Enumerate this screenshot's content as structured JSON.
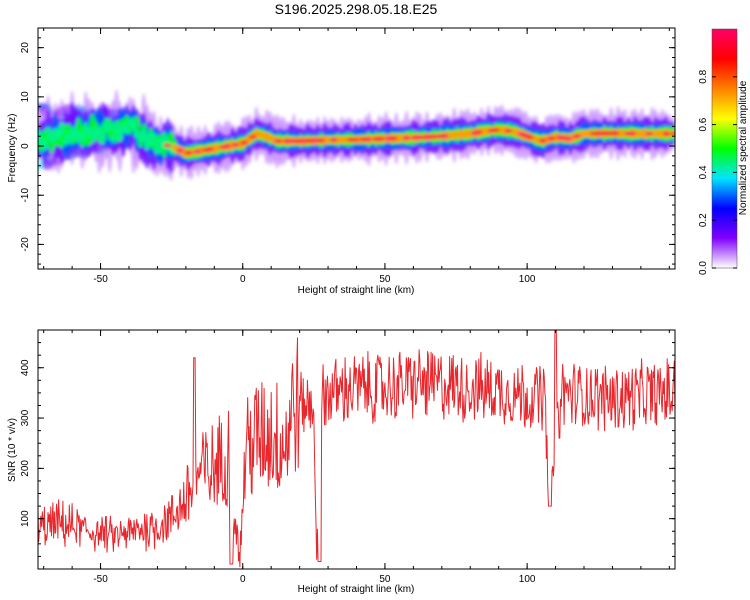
{
  "title": "S196.2025.298.05.18.E25",
  "colors": {
    "snr_line": "#e8262c",
    "axis": "#000000",
    "background": "#ffffff",
    "ridge": "#ff1a1a"
  },
  "chart_data": [
    {
      "id": "spectrogram",
      "type": "heatmap",
      "xlabel": "Height of straight line (km)",
      "ylabel": "Frequency (Hz)",
      "xlim": [
        -72,
        152
      ],
      "ylim": [
        -25,
        24
      ],
      "x_ticks": [
        -50,
        0,
        50,
        100
      ],
      "y_ticks": [
        -20,
        -10,
        0,
        10,
        20
      ],
      "ridge": {
        "description": "dominant frequency ridge (Hz) vs height (km)",
        "x": [
          -70,
          -60,
          -50,
          -45,
          -40,
          -35,
          -30,
          -25,
          -20,
          -15,
          -10,
          -5,
          0,
          5,
          8,
          12,
          20,
          30,
          40,
          50,
          60,
          70,
          80,
          85,
          90,
          95,
          100,
          105,
          110,
          115,
          120,
          130,
          140,
          152
        ],
        "y": [
          1.5,
          2.5,
          3.0,
          3.0,
          4.0,
          2.0,
          0.5,
          0.0,
          -1.5,
          -1.0,
          -0.5,
          0.0,
          0.5,
          2.5,
          2.0,
          1.0,
          1.0,
          1.2,
          1.3,
          1.5,
          1.7,
          2.0,
          2.5,
          3.0,
          3.3,
          3.0,
          2.0,
          1.0,
          1.8,
          1.5,
          2.5,
          2.6,
          2.5,
          2.5
        ]
      },
      "colorbar": {
        "label": "Normalized spectral amplitude",
        "range": [
          0.0,
          1.0
        ],
        "ticks": [
          "0.0",
          "0.2",
          "0.4",
          "0.6",
          "0.8"
        ],
        "stops": [
          "#ffffff",
          "#8000ff",
          "#0000ff",
          "#00e5ff",
          "#00ff00",
          "#ffff00",
          "#ff8000",
          "#ff0000",
          "#ff0066"
        ]
      }
    },
    {
      "id": "snr",
      "type": "line",
      "xlabel": "Height of straight line (km)",
      "ylabel": "SNR (10 * v/v)",
      "xlim": [
        -72,
        152
      ],
      "ylim": [
        0,
        475
      ],
      "x_ticks": [
        -50,
        0,
        50,
        100
      ],
      "y_ticks": [
        100,
        200,
        300,
        400
      ],
      "series": [
        {
          "name": "SNR",
          "description": "approximate envelope of the noisy SNR trace (km, value)",
          "x": [
            -72,
            -65,
            -60,
            -55,
            -50,
            -45,
            -40,
            -35,
            -30,
            -25,
            -20,
            -17,
            -15,
            -10,
            -5,
            -1,
            1,
            5,
            10,
            15,
            18,
            20,
            25,
            26,
            28,
            30,
            40,
            50,
            60,
            70,
            80,
            90,
            100,
            104,
            106,
            108,
            112,
            120,
            130,
            140,
            152
          ],
          "y": [
            80,
            90,
            85,
            75,
            70,
            65,
            70,
            80,
            85,
            100,
            140,
            170,
            190,
            200,
            230,
            20,
            240,
            260,
            270,
            250,
            330,
            330,
            320,
            20,
            340,
            350,
            360,
            360,
            370,
            365,
            360,
            355,
            345,
            340,
            350,
            130,
            350,
            345,
            340,
            345,
            350
          ]
        }
      ],
      "annotations": {
        "noted_spikes": [
          {
            "x": -17,
            "y": 420
          },
          {
            "x": 110,
            "y": 475
          }
        ],
        "noted_dips": [
          {
            "x": -4,
            "y": 10
          },
          {
            "x": 27,
            "y": 15
          },
          {
            "x": 108,
            "y": 125
          }
        ]
      }
    }
  ]
}
